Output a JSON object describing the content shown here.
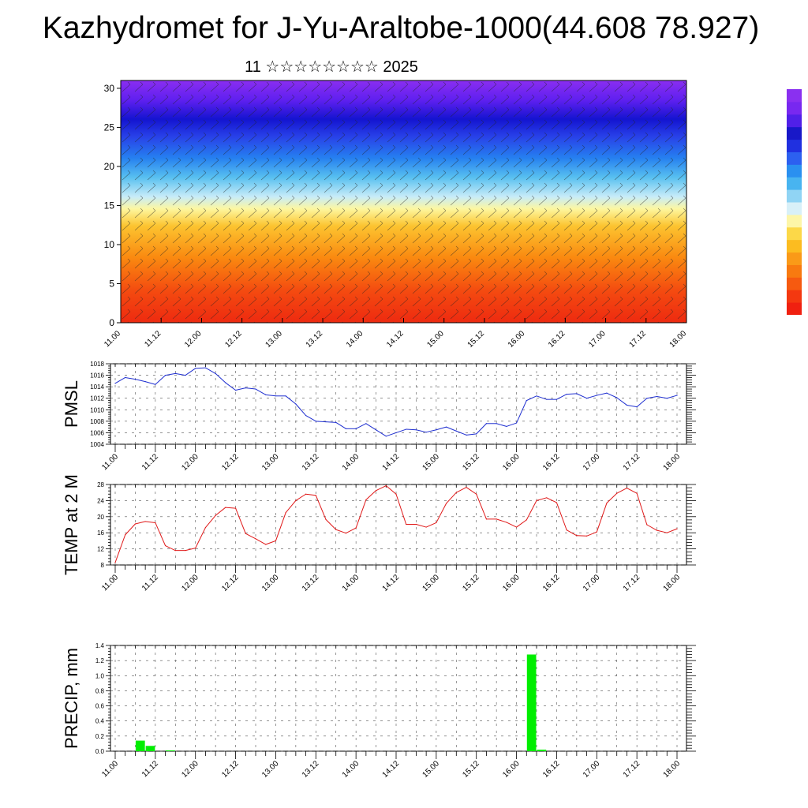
{
  "title": "Kazhydromet for J-Yu-Araltobe-1000(44.608 78.927)",
  "subtitle": "11 ☆☆☆☆☆☆☆☆ 2025",
  "colors": {
    "pmsl_line": "#1f2fd0",
    "temp_line": "#e01818",
    "precip_bar": "#00ee00",
    "axis": "#000000"
  },
  "chart_data": [
    {
      "type": "heatmap",
      "title": "",
      "description_overlay": "wind barbs",
      "x_tick_labels": [
        "11.00",
        "11.12",
        "12.00",
        "12.12",
        "13.00",
        "13.12",
        "14.00",
        "14.12",
        "15.00",
        "15.12",
        "16.00",
        "16.12",
        "17.00",
        "17.12",
        "18.00"
      ],
      "y_ticks": [
        0,
        5,
        10,
        15,
        20,
        25,
        30
      ],
      "ylim": [
        0,
        31
      ],
      "colorbar_labels": [],
      "grid": false
    },
    {
      "type": "line",
      "ylabel": "PMSL",
      "ylim": [
        1004,
        1018
      ],
      "y_ticks": [
        1004,
        1006,
        1008,
        1010,
        1012,
        1014,
        1016,
        1018
      ],
      "x_tick_labels": [
        "11.00",
        "11.12",
        "12.00",
        "12.12",
        "13.00",
        "13.12",
        "14.00",
        "14.12",
        "15.00",
        "15.12",
        "16.00",
        "16.12",
        "17.00",
        "17.12",
        "18.00"
      ],
      "step_hours": 3,
      "grid": true,
      "series": [
        {
          "values": [
            1014.6,
            1015.6,
            1015.3,
            1014.9,
            1014.4,
            1016.0,
            1016.3,
            1016.0,
            1017.2,
            1017.3,
            1016.3,
            1014.7,
            1013.4,
            1013.8,
            1013.6,
            1012.6,
            1012.4,
            1012.4,
            1011.0,
            1009.0,
            1008.0,
            1007.9,
            1007.8,
            1006.7,
            1006.7,
            1007.6,
            1006.5,
            1005.4,
            1006.0,
            1006.6,
            1006.5,
            1006.1,
            1006.5,
            1007.0,
            1006.3,
            1005.6,
            1005.8,
            1007.6,
            1007.6,
            1007.1,
            1007.7,
            1011.6,
            1012.4,
            1011.8,
            1011.8,
            1012.7,
            1012.8,
            1012.0,
            1012.5,
            1012.9,
            1012.1,
            1010.8,
            1010.5,
            1012.0,
            1012.3,
            1012.0,
            1012.5
          ]
        }
      ]
    },
    {
      "type": "line",
      "ylabel": "TEMP at 2 M",
      "ylim": [
        8,
        28
      ],
      "y_ticks": [
        8,
        12,
        16,
        20,
        24,
        28
      ],
      "x_tick_labels": [
        "11.00",
        "11.12",
        "12.00",
        "12.12",
        "13.00",
        "13.12",
        "14.00",
        "14.12",
        "15.00",
        "15.12",
        "16.00",
        "16.12",
        "17.00",
        "17.12",
        "18.00"
      ],
      "step_hours": 3,
      "grid": true,
      "series": [
        {
          "values": [
            8.6,
            15.5,
            18.2,
            18.8,
            18.5,
            12.8,
            11.6,
            11.6,
            12.2,
            17.3,
            20.3,
            22.3,
            22.1,
            15.8,
            14.5,
            13.1,
            14.0,
            21.0,
            24.0,
            25.6,
            25.3,
            19.3,
            16.8,
            15.9,
            17.2,
            24.2,
            26.5,
            27.7,
            25.6,
            18.1,
            18.1,
            17.4,
            18.5,
            23.3,
            26.0,
            27.3,
            25.6,
            19.4,
            19.4,
            18.6,
            17.4,
            19.2,
            24.0,
            24.7,
            23.5,
            16.7,
            15.3,
            15.2,
            16.2,
            23.4,
            25.8,
            27.1,
            25.8,
            18.0,
            16.6,
            16.0,
            17.0
          ]
        }
      ]
    },
    {
      "type": "bar",
      "ylabel": "PRECIP, mm",
      "ylim": [
        0,
        1.4
      ],
      "y_ticks": [
        "0.0",
        "0.2",
        "0.4",
        "0.6",
        "0.8",
        "1.0",
        "1.2",
        "1.4"
      ],
      "x_tick_labels": [
        "11.00",
        "11.12",
        "12.00",
        "12.12",
        "13.00",
        "13.12",
        "14.00",
        "14.12",
        "15.00",
        "15.12",
        "16.00",
        "16.12",
        "17.00",
        "17.12",
        "18.00"
      ],
      "step_hours": 3,
      "grid": true,
      "series": [
        {
          "values": [
            0,
            0,
            0.14,
            0.07,
            0,
            0.01,
            0,
            0,
            0,
            0,
            0,
            0,
            0,
            0,
            0,
            0,
            0,
            0,
            0,
            0,
            0,
            0,
            0,
            0,
            0,
            0,
            0,
            0,
            0,
            0,
            0,
            0,
            0,
            0,
            0,
            0,
            0,
            0,
            0,
            0,
            0,
            1.28,
            0.02,
            0,
            0,
            0,
            0,
            0,
            0,
            0,
            0,
            0,
            0,
            0,
            0,
            0,
            0
          ]
        }
      ]
    }
  ]
}
